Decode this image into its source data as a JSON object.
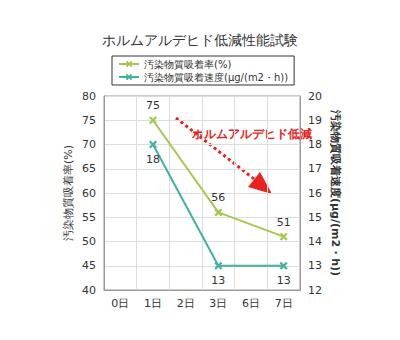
{
  "chart_data": {
    "type": "line",
    "title": "ホルムアルデヒド低減性能試験",
    "categories": [
      "0日",
      "1日",
      "2日",
      "3日",
      "6日",
      "7日"
    ],
    "series": [
      {
        "name": "汚染物質吸着率(%)",
        "color": "#a5c94c",
        "values": [
          null,
          75,
          null,
          56,
          null,
          51
        ],
        "marker": "x"
      },
      {
        "name": "汚染物質吸着速度(μg/(m2・h))",
        "color": "#3fb39c",
        "values": [
          null,
          18,
          null,
          13,
          null,
          13
        ],
        "axis": "y2",
        "marker": "x"
      }
    ],
    "y_label": "汚染物質吸着率(%)",
    "y2_label": "汚染物質吸着速度(μg/(m2・h))",
    "ylim": [
      40,
      80
    ],
    "yticks": [
      40,
      45,
      50,
      55,
      60,
      65,
      70,
      75,
      80
    ],
    "y2lim": [
      12,
      20
    ],
    "y2ticks": [
      12,
      13,
      14,
      15,
      16,
      17,
      18,
      19,
      20
    ],
    "annotations": [
      "ホルムアルデヒド低減"
    ],
    "grid": true,
    "legend": "top",
    "data_labels": true
  }
}
